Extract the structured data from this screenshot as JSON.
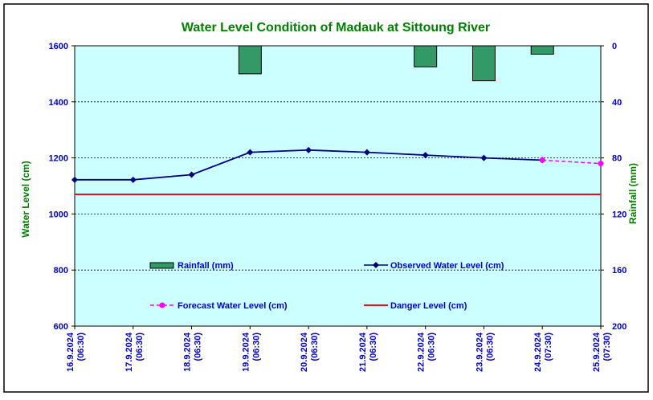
{
  "chart_data": {
    "type": "line",
    "title": "Water Level Condition of Madauk at Sittoung River",
    "ylabel": "Water Level (cm)",
    "y2label": "Rainfall (mm)",
    "ylim": [
      600,
      1600
    ],
    "y2lim": [
      0,
      200
    ],
    "y2_inverted": true,
    "yticks": [
      "1600",
      "1400",
      "1200",
      "1000",
      "800",
      "600"
    ],
    "y2ticks": [
      "0",
      "40",
      "80",
      "120",
      "160",
      "200"
    ],
    "categories": [
      {
        "date": "16.9.2024",
        "time": "(06:30)"
      },
      {
        "date": "17.9.2024",
        "time": "(06:30)"
      },
      {
        "date": "18.9.2024",
        "time": "(06:30)"
      },
      {
        "date": "19.9.2024",
        "time": "(06:30)"
      },
      {
        "date": "20.9.2024",
        "time": "(06:30)"
      },
      {
        "date": "21.9.2024",
        "time": "(06:30)"
      },
      {
        "date": "22.9.2024",
        "time": "(06:30)"
      },
      {
        "date": "23.9.2024",
        "time": "(06:30)"
      },
      {
        "date": "24.9.2024",
        "time": "(07:30)"
      },
      {
        "date": "25.9.2024",
        "time": "(07:30)"
      }
    ],
    "grid": true,
    "series": {
      "observed": {
        "name": "Observed Water Level (cm)",
        "color": "#00007f",
        "values": [
          1122,
          1122,
          1140,
          1220,
          1228,
          1220,
          1210,
          1200,
          1192,
          null
        ]
      },
      "forecast": {
        "name": "Forecast Water Level (cm)",
        "color": "#ff00ff",
        "values": [
          null,
          null,
          null,
          null,
          null,
          null,
          null,
          null,
          1192,
          1180
        ]
      },
      "danger": {
        "name": "Danger Level (cm)",
        "color": "#e8121c",
        "value": 1070
      },
      "rainfall": {
        "name": "Rainfall (mm)",
        "color": "#339966",
        "values": [
          0,
          0,
          0,
          20,
          0,
          0,
          15,
          25,
          6,
          0
        ]
      }
    },
    "colors": {
      "plot_background": "#ccffff",
      "title": "#008000",
      "left_axis_label": "#008000",
      "right_axis_label": "#008000",
      "tick_labels": "#0000cc",
      "legend_text": "#0000cc"
    },
    "legend_placement": "inside-bottom"
  }
}
